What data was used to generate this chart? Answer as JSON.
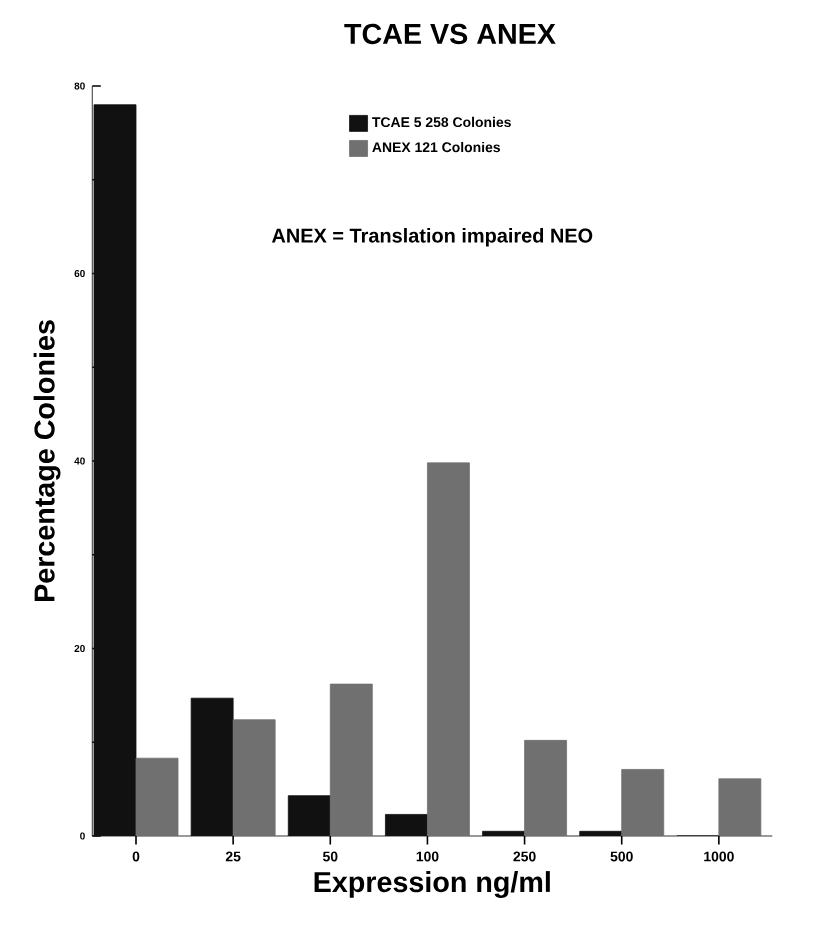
{
  "chart_data": {
    "type": "bar",
    "title": "TCAE VS ANEX",
    "xlabel": "Expression ng/ml",
    "ylabel": "Percentage Colonies",
    "categories": [
      "0",
      "25",
      "50",
      "100",
      "250",
      "500",
      "1000"
    ],
    "series": [
      {
        "name": "TCAE 5 258 Colonies",
        "color": "#111111",
        "values": [
          78,
          14.7,
          4.3,
          2.3,
          0.5,
          0.5,
          0
        ]
      },
      {
        "name": "ANEX 121 Colonies",
        "color": "#707070",
        "values": [
          8.3,
          12.4,
          16.2,
          39.8,
          10.2,
          7.1,
          6.1
        ]
      }
    ],
    "ylim": [
      0,
      80
    ],
    "yticks": [
      0,
      20,
      40,
      60,
      80
    ],
    "legend": "top",
    "annotations": [
      "ANEX = Translation impaired NEO"
    ]
  }
}
